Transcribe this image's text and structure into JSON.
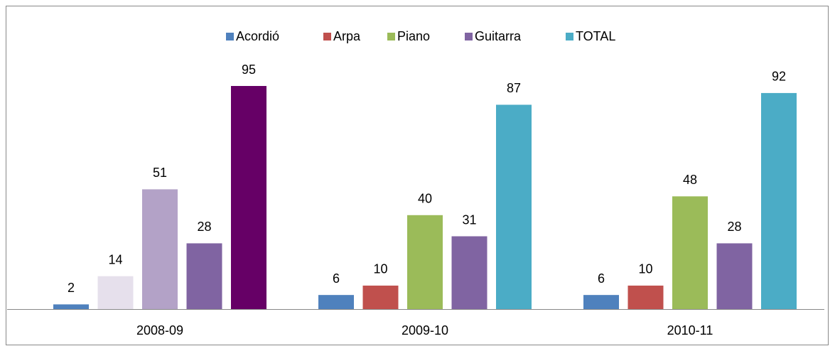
{
  "chart_data": {
    "type": "bar",
    "categories": [
      "2008-09",
      "2009-10",
      "2010-11"
    ],
    "series": [
      {
        "name": "Acordió",
        "color": "#4f81bd",
        "colors": [
          "#4f81bd",
          "#4f81bd",
          "#4f81bd"
        ],
        "values": [
          2,
          6,
          6
        ]
      },
      {
        "name": "Arpa",
        "color": "#c0504d",
        "colors": [
          "#e6e0ec",
          "#c0504d",
          "#c0504d"
        ],
        "values": [
          14,
          10,
          10
        ]
      },
      {
        "name": "Piano",
        "color": "#9bbb59",
        "colors": [
          "#b3a2c7",
          "#9bbb59",
          "#9bbb59"
        ],
        "values": [
          51,
          40,
          48
        ]
      },
      {
        "name": "Guitarra",
        "color": "#8064a2",
        "colors": [
          "#8064a2",
          "#8064a2",
          "#8064a2"
        ],
        "values": [
          28,
          31,
          28
        ]
      },
      {
        "name": "TOTAL",
        "color": "#4bacc6",
        "colors": [
          "#660066",
          "#4bacc6",
          "#4bacc6"
        ],
        "values": [
          95,
          87,
          92
        ]
      }
    ],
    "legend": "top"
  }
}
